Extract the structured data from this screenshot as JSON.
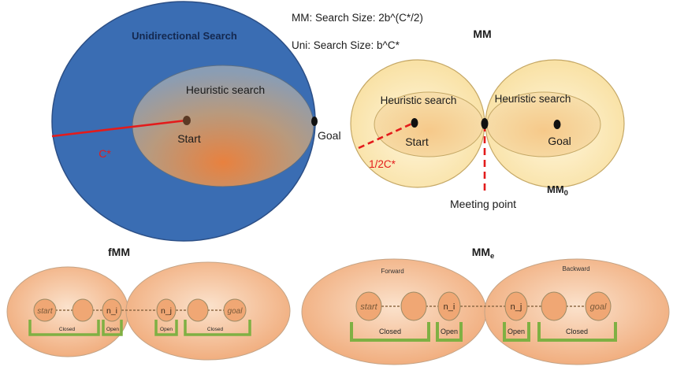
{
  "colors": {
    "blue": "#3a6db3",
    "blue_stroke": "#2c4f86",
    "orange": "#e8813f",
    "orange_light": "#f4c39a",
    "cream": "#fbe9b8",
    "cream_stroke": "#c5a866",
    "red": "#e31b1b",
    "green": "#7fb043",
    "node_fill": "#f0a774",
    "node_stroke": "#9c8a64"
  },
  "icons": {
    "point": "filled-black-ellipse"
  },
  "uni": {
    "title": "Unidirectional Search",
    "heuristic_label": "Heuristic search",
    "start_label": "Start",
    "goal_label": "Goal",
    "radius_label": "C*"
  },
  "legend": {
    "mm_size": "MM: Search Size: 2b^(C*/2)",
    "uni_size": "Uni: Search Size: b^C*"
  },
  "mm": {
    "title": "MM",
    "heuristic_left": "Heuristic search",
    "heuristic_right": "Heuristic search",
    "start_label": "Start",
    "goal_label": "Goal",
    "radius_label": "1/2C*",
    "meeting_label": "Meeting point",
    "mm0_main": "MM",
    "mm0_sub": "0"
  },
  "fmm": {
    "title": "fMM",
    "nodes": [
      "start",
      "",
      "n_i",
      "n_j",
      "",
      "goal"
    ],
    "closed_left": "Closed",
    "open_left": "Open",
    "open_right": "Open",
    "closed_right": "Closed"
  },
  "mme": {
    "title_main": "MM",
    "title_sub": "e",
    "forward": "Forward",
    "backward": "Backward",
    "nodes": [
      "start",
      "",
      "n_i",
      "n_j",
      "",
      "goal"
    ],
    "closed_left": "Closed",
    "open_left": "Open",
    "open_right": "Open",
    "closed_right": "Closed"
  }
}
